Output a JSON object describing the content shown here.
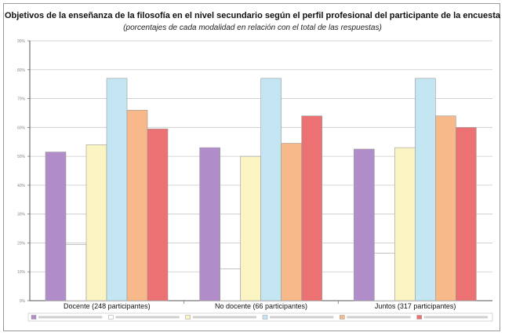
{
  "header": {
    "title": "Objetivos de la enseñanza de la filosofía en el nivel secundario según el perfil profesional del participante de la encuesta",
    "subtitle": "(porcentajes de cada modalidad en relación con el total de las respuestas)"
  },
  "chart_data": {
    "type": "bar",
    "title": "Objetivos de la enseñanza de la filosofía en el nivel secundario según el perfil profesional del participante de la encuesta",
    "subtitle": "(porcentajes de cada modalidad en relación con el total de las respuestas)",
    "xlabel": "",
    "ylabel": "",
    "categories": [
      "Docente (248 participantes)",
      "No docente (66 participantes)",
      "Juntos (317 participantes)"
    ],
    "ylim": [
      0,
      90
    ],
    "yticks": [
      "0%",
      "10%",
      "20%",
      "30%",
      "40%",
      "50%",
      "60%",
      "70%",
      "80%",
      "90%"
    ],
    "grid": true,
    "legend": "bottom",
    "series": [
      {
        "name": "",
        "color": "#b08cc8",
        "values": [
          51.5,
          53.0,
          52.5
        ]
      },
      {
        "name": "",
        "color": "#ffffff",
        "values": [
          19.5,
          11.0,
          16.5
        ]
      },
      {
        "name": "",
        "color": "#faf3c2",
        "values": [
          54.0,
          50.0,
          53.0
        ]
      },
      {
        "name": "",
        "color": "#c4e6f3",
        "values": [
          77.0,
          77.0,
          77.0
        ]
      },
      {
        "name": "",
        "color": "#f8b98a",
        "values": [
          66.0,
          54.5,
          64.0
        ]
      },
      {
        "name": "",
        "color": "#ec7172",
        "values": [
          59.5,
          64.0,
          60.0
        ]
      }
    ]
  }
}
